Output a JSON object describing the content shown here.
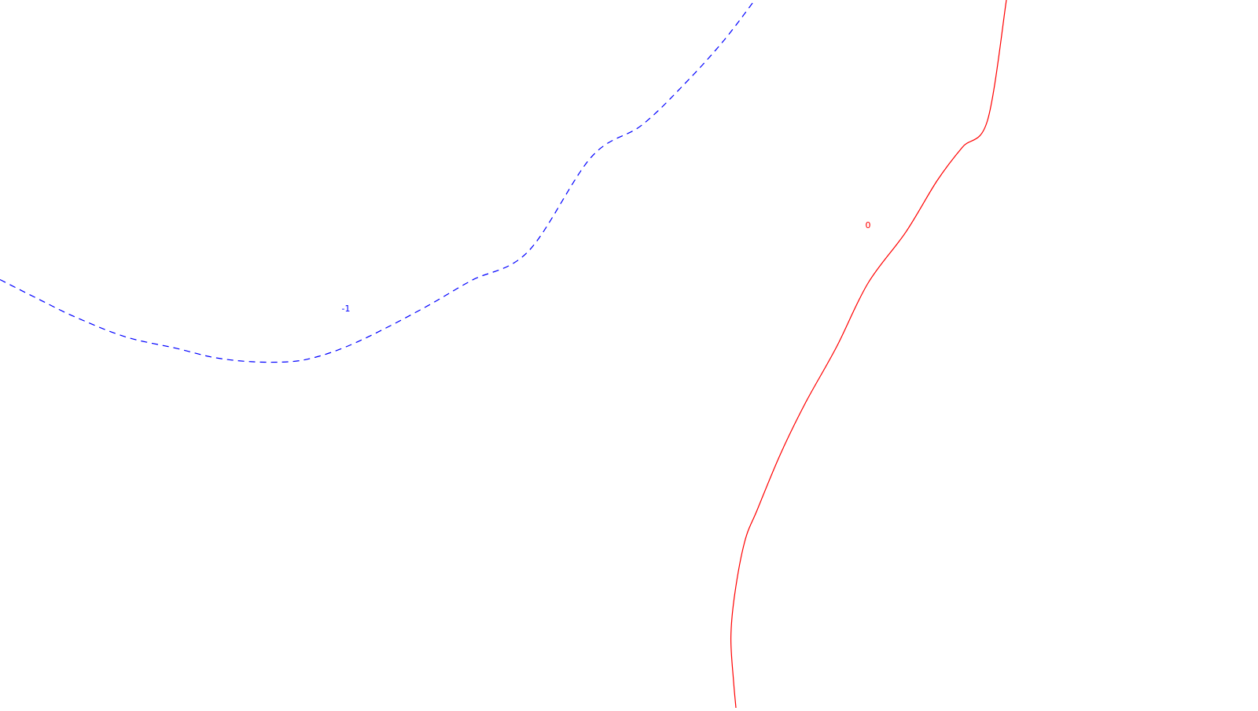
{
  "chart_data": {
    "type": "contour",
    "title": "",
    "xlabel": "",
    "ylabel": "",
    "grid": false,
    "legend": "none",
    "series": [
      {
        "label": "-1",
        "level": -1,
        "color": "#0000ff",
        "style": "dashed",
        "points": [
          [
            0.0,
            0.395
          ],
          [
            0.03,
            0.422
          ],
          [
            0.06,
            0.448
          ],
          [
            0.1,
            0.476
          ],
          [
            0.14,
            0.492
          ],
          [
            0.17,
            0.505
          ],
          [
            0.2,
            0.511
          ],
          [
            0.23,
            0.511
          ],
          [
            0.25,
            0.505
          ],
          [
            0.275,
            0.49
          ],
          [
            0.305,
            0.465
          ],
          [
            0.34,
            0.432
          ],
          [
            0.375,
            0.396
          ],
          [
            0.42,
            0.355
          ],
          [
            0.47,
            0.222
          ],
          [
            0.51,
            0.177
          ],
          [
            0.545,
            0.117
          ],
          [
            0.575,
            0.058
          ],
          [
            0.6,
            0.0
          ]
        ]
      },
      {
        "label": "0",
        "level": 0,
        "color": "#ff0000",
        "style": "solid",
        "points": [
          [
            0.585,
            1.0
          ],
          [
            0.583,
            0.96
          ],
          [
            0.581,
            0.9
          ],
          [
            0.584,
            0.84
          ],
          [
            0.592,
            0.765
          ],
          [
            0.602,
            0.72
          ],
          [
            0.62,
            0.643
          ],
          [
            0.64,
            0.57
          ],
          [
            0.665,
            0.49
          ],
          [
            0.69,
            0.4
          ],
          [
            0.72,
            0.328
          ],
          [
            0.745,
            0.255
          ],
          [
            0.765,
            0.208
          ],
          [
            0.785,
            0.17
          ],
          [
            0.8,
            0.0
          ]
        ]
      }
    ]
  }
}
